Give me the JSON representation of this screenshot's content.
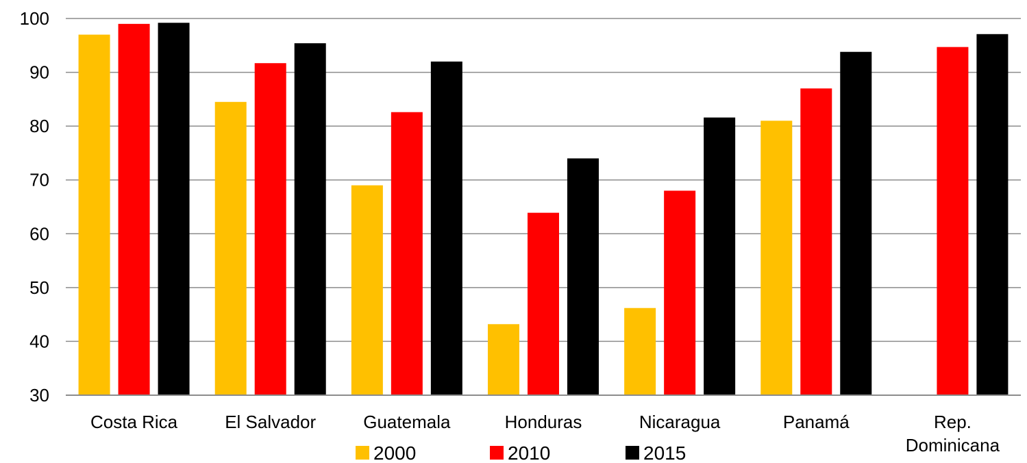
{
  "chart_data": {
    "type": "bar",
    "title": "",
    "xlabel": "",
    "ylabel": "",
    "ylim": [
      30,
      100
    ],
    "yticks": [
      30,
      40,
      50,
      60,
      70,
      80,
      90,
      100
    ],
    "grid": true,
    "legend_position": "bottom",
    "categories": [
      [
        "Costa Rica"
      ],
      [
        "El Salvador"
      ],
      [
        "Guatemala"
      ],
      [
        "Honduras"
      ],
      [
        "Nicaragua"
      ],
      [
        "Panamá"
      ],
      [
        "Rep.",
        "Dominicana"
      ]
    ],
    "series": [
      {
        "name": "2000",
        "color": "#FFC000",
        "values": [
          97.0,
          84.5,
          69.0,
          43.2,
          46.2,
          81.0,
          null
        ]
      },
      {
        "name": "2010",
        "color": "#FF0000",
        "values": [
          99.0,
          91.7,
          82.6,
          63.9,
          68.0,
          87.0,
          94.7
        ]
      },
      {
        "name": "2015",
        "color": "#000000",
        "values": [
          99.2,
          95.4,
          92.0,
          74.0,
          81.6,
          93.8,
          97.1
        ]
      }
    ]
  }
}
